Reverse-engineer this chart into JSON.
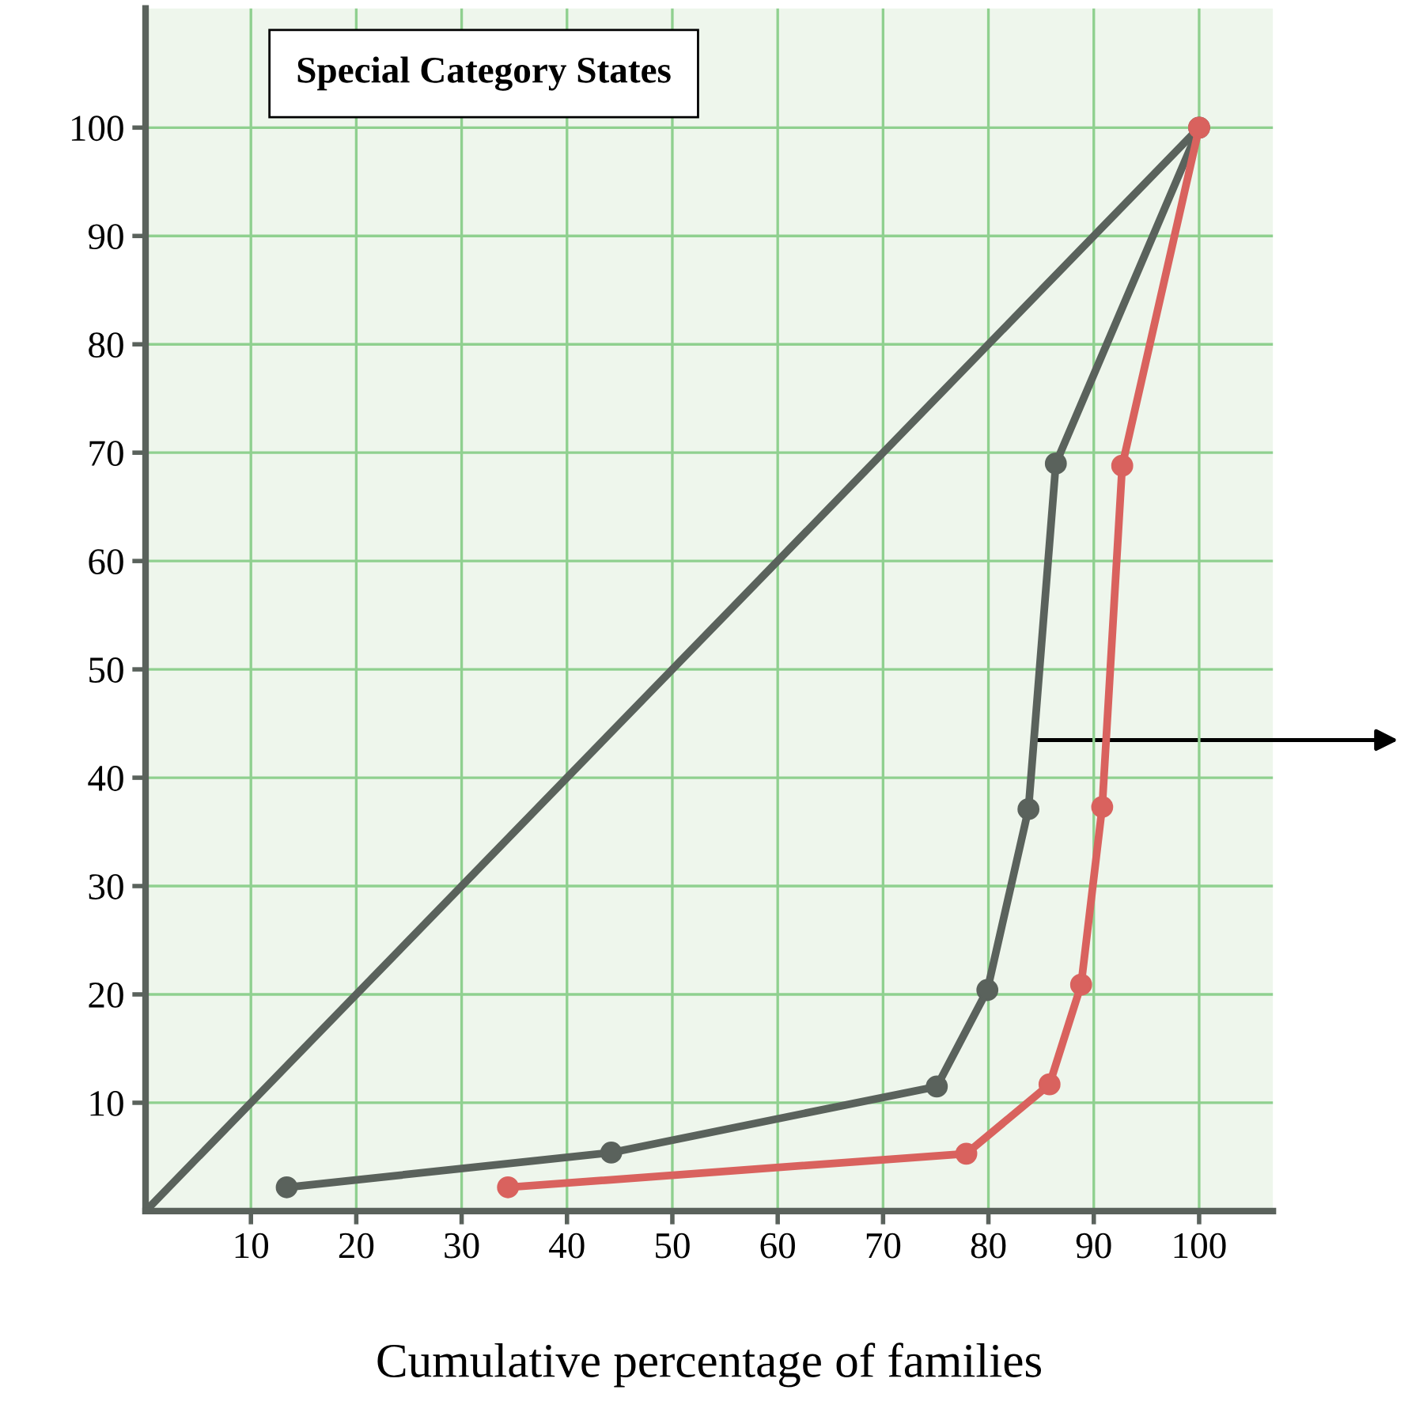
{
  "chart_data": {
    "type": "line",
    "title": "Special Category States",
    "xlabel": "Cumulative percentage of families",
    "series": [
      {
        "color": "#5a625c",
        "x": [
          0,
          100
        ],
        "values": [
          0,
          100
        ]
      },
      {
        "color": "#5a625c",
        "marker": "circle",
        "x": [
          13.4,
          44.2,
          75.1,
          79.9,
          83.8,
          86.4,
          100
        ],
        "values": [
          2.2,
          5.4,
          11.5,
          20.4,
          37.1,
          69,
          100
        ]
      },
      {
        "color": "#d9625e",
        "marker": "circle",
        "x": [
          34.4,
          77.9,
          85.8,
          88.8,
          90.8,
          92.7,
          100
        ],
        "values": [
          2.2,
          5.3,
          11.7,
          20.9,
          37.3,
          68.8,
          100
        ]
      }
    ],
    "xlim": [
      0,
      107
    ],
    "ylim": [
      0,
      111
    ],
    "xticks": [
      10,
      20,
      30,
      40,
      50,
      60,
      70,
      80,
      90,
      100
    ],
    "yticks": [
      10,
      20,
      30,
      40,
      50,
      60,
      70,
      80,
      90,
      100
    ],
    "grid": true,
    "legend": false
  }
}
